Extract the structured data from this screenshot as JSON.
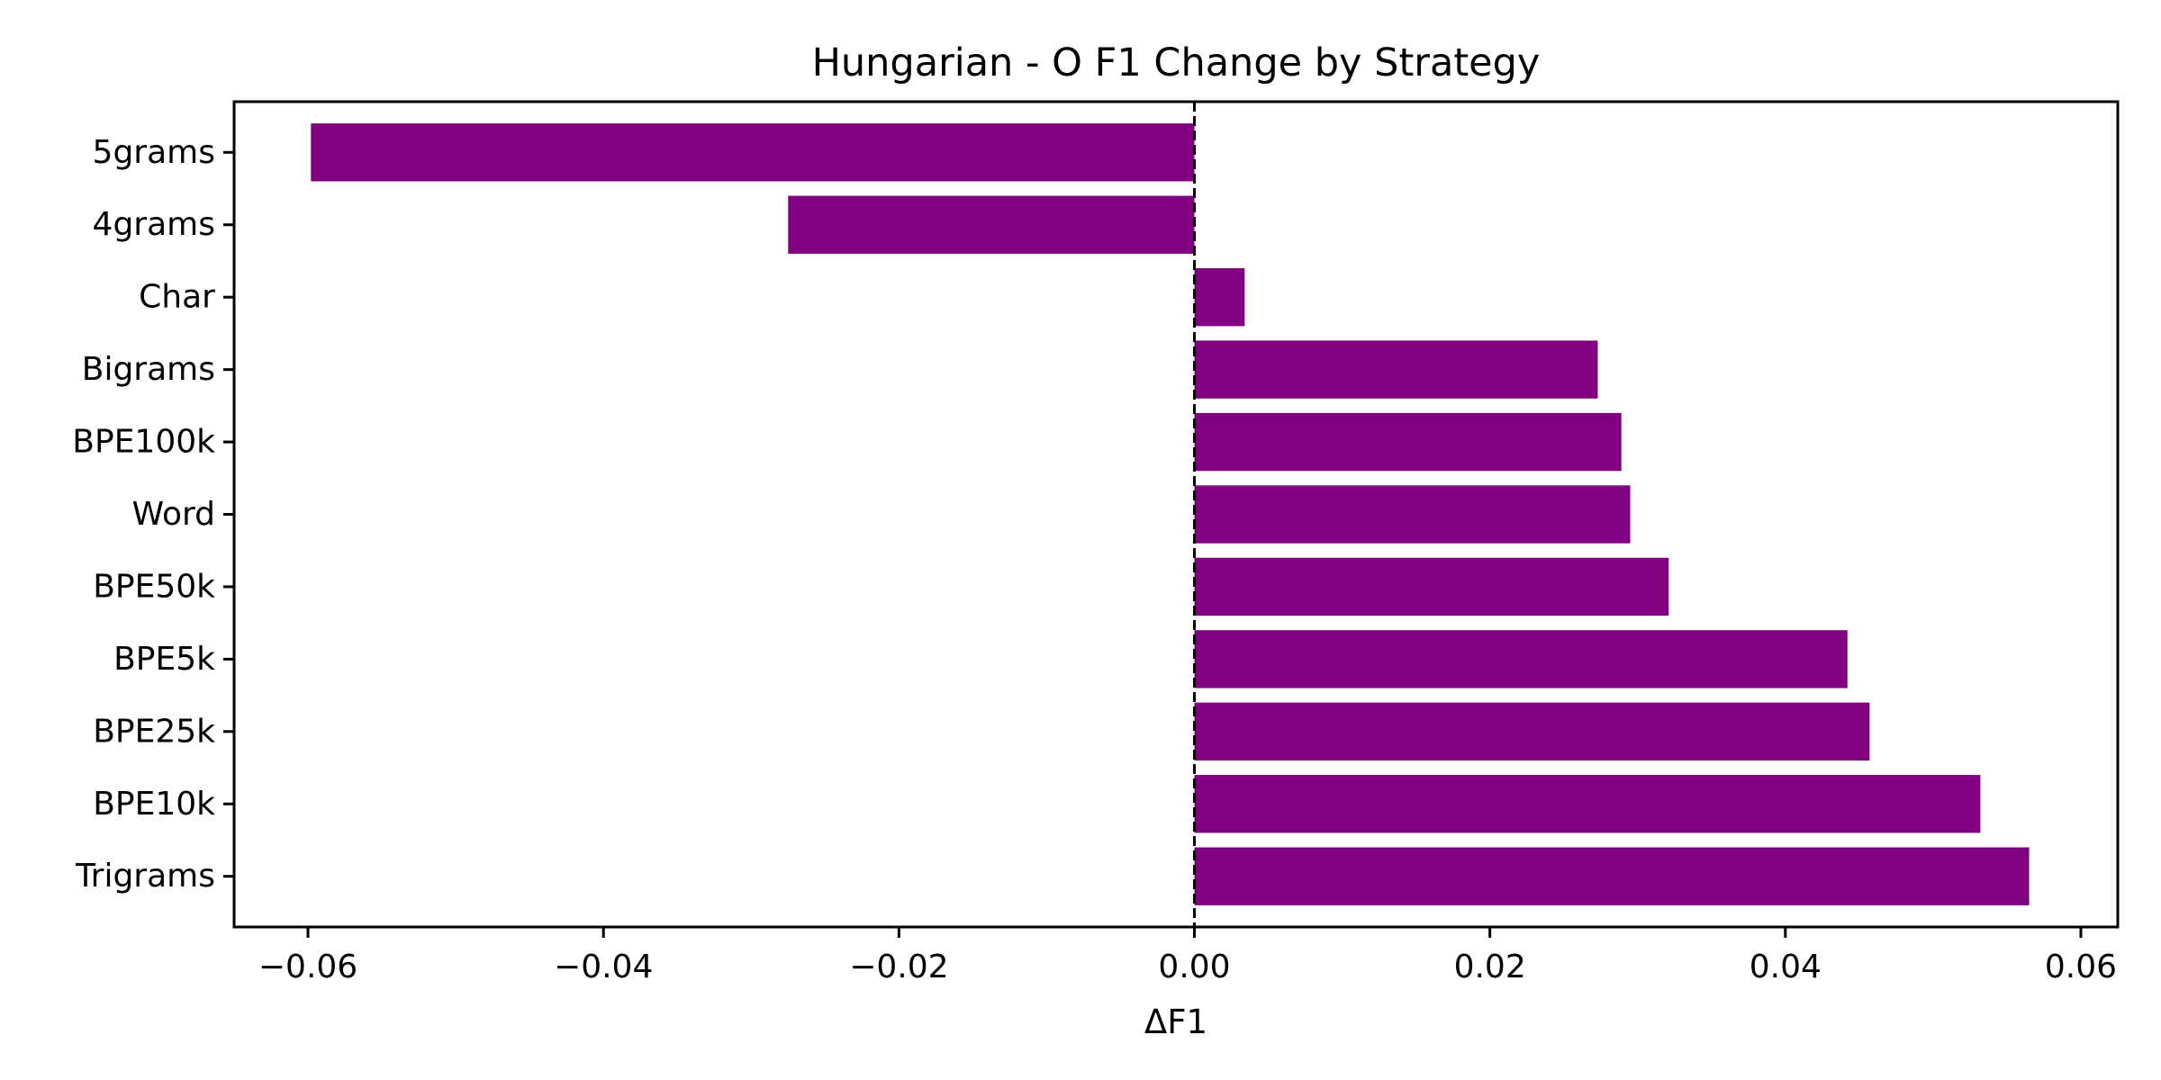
{
  "chart_data": {
    "type": "bar",
    "orientation": "horizontal",
    "title": "Hungarian - O F1 Change by Strategy",
    "xlabel": "ΔF1",
    "ylabel": "",
    "categories": [
      "Trigrams",
      "BPE10k",
      "BPE25k",
      "BPE5k",
      "BPE50k",
      "Word",
      "BPE100k",
      "Bigrams",
      "Char",
      "4grams",
      "5grams"
    ],
    "values": [
      0.0565,
      0.0532,
      0.0457,
      0.0442,
      0.0321,
      0.0295,
      0.0289,
      0.0273,
      0.0034,
      -0.0275,
      -0.0598
    ],
    "xlim": [
      -0.065,
      0.0625
    ],
    "xticks": [
      -0.06,
      -0.04,
      -0.02,
      0.0,
      0.02,
      0.04,
      0.06
    ],
    "xtick_labels": [
      "−0.06",
      "−0.04",
      "−0.02",
      "0.00",
      "0.02",
      "0.04",
      "0.06"
    ],
    "reference_line": {
      "x": 0,
      "style": "dashed"
    },
    "bar_color": "#800080",
    "grid": false,
    "legend": "none"
  }
}
